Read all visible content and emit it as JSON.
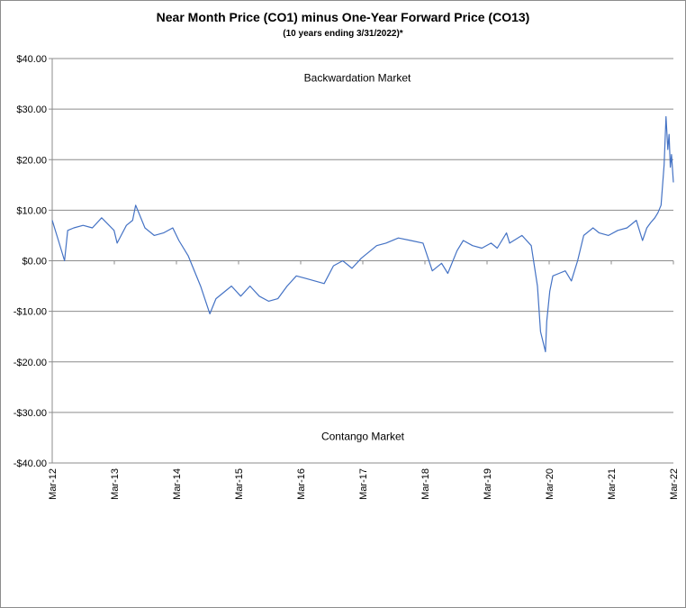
{
  "chart_data": {
    "type": "line",
    "title": "Near Month Price (CO1) minus One-Year Forward Price (CO13)",
    "subtitle": "(10 years ending  3/31/2022)*",
    "ylim": [
      -40,
      40
    ],
    "y_ticks": [
      "$40.00",
      "$30.00",
      "$20.00",
      "$10.00",
      "$0.00",
      "-$10.00",
      "-$20.00",
      "-$30.00",
      "-$40.00"
    ],
    "y_tick_values": [
      40,
      30,
      20,
      10,
      0,
      -10,
      -20,
      -30,
      -40
    ],
    "x_ticks": [
      "Mar-12",
      "Mar-13",
      "Mar-14",
      "Mar-15",
      "Mar-16",
      "Mar-17",
      "Mar-18",
      "Mar-19",
      "Mar-20",
      "Mar-21",
      "Mar-22"
    ],
    "grid": true,
    "legend": "none",
    "annotations": {
      "top": "Backwardation Market",
      "bottom": "Contango Market"
    },
    "series": [
      {
        "color": "#4472c4",
        "x": [
          2012.2,
          2012.3,
          2012.4,
          2012.45,
          2012.55,
          2012.7,
          2012.85,
          2013.0,
          2013.2,
          2013.25,
          2013.4,
          2013.5,
          2013.55,
          2013.7,
          2013.85,
          2014.0,
          2014.15,
          2014.25,
          2014.4,
          2014.6,
          2014.75,
          2014.85,
          2014.95,
          2015.1,
          2015.25,
          2015.4,
          2015.55,
          2015.7,
          2015.85,
          2016.0,
          2016.15,
          2016.3,
          2016.45,
          2016.6,
          2016.75,
          2016.9,
          2017.05,
          2017.2,
          2017.35,
          2017.45,
          2017.6,
          2017.8,
          2018.0,
          2018.2,
          2018.35,
          2018.5,
          2018.6,
          2018.75,
          2018.85,
          2019.0,
          2019.15,
          2019.3,
          2019.4,
          2019.55,
          2019.6,
          2019.8,
          2019.95,
          2020.05,
          2020.1,
          2020.18,
          2020.2,
          2020.25,
          2020.3,
          2020.4,
          2020.5,
          2020.6,
          2020.7,
          2020.8,
          2020.95,
          2021.05,
          2021.2,
          2021.35,
          2021.5,
          2021.65,
          2021.75,
          2021.82,
          2021.88,
          2021.95,
          2022.0,
          2022.05,
          2022.1,
          2022.13,
          2022.16,
          2022.18,
          2022.2,
          2022.22,
          2022.25
        ],
        "y": [
          8.0,
          4.0,
          0.0,
          6.0,
          6.5,
          7.0,
          6.5,
          8.5,
          6.0,
          3.5,
          7.0,
          8.0,
          11.0,
          6.5,
          5.0,
          5.5,
          6.5,
          4.0,
          1.0,
          -5.0,
          -10.5,
          -7.5,
          -6.5,
          -5.0,
          -7.0,
          -5.0,
          -7.0,
          -8.0,
          -7.5,
          -5.0,
          -3.0,
          -3.5,
          -4.0,
          -4.5,
          -1.0,
          0.0,
          -1.5,
          0.5,
          2.0,
          3.0,
          3.5,
          4.5,
          4.0,
          3.5,
          -2.0,
          -0.5,
          -2.5,
          2.0,
          4.0,
          3.0,
          2.5,
          3.5,
          2.5,
          5.5,
          3.5,
          5.0,
          3.0,
          -5.0,
          -14.0,
          -18.0,
          -12.0,
          -6.0,
          -3.0,
          -2.5,
          -2.0,
          -4.0,
          0.0,
          5.0,
          6.5,
          5.5,
          5.0,
          6.0,
          6.5,
          8.0,
          4.0,
          6.5,
          7.5,
          8.5,
          9.5,
          11.0,
          19.0,
          28.5,
          22.0,
          25.0,
          18.5,
          21.0,
          15.5
        ]
      }
    ]
  }
}
